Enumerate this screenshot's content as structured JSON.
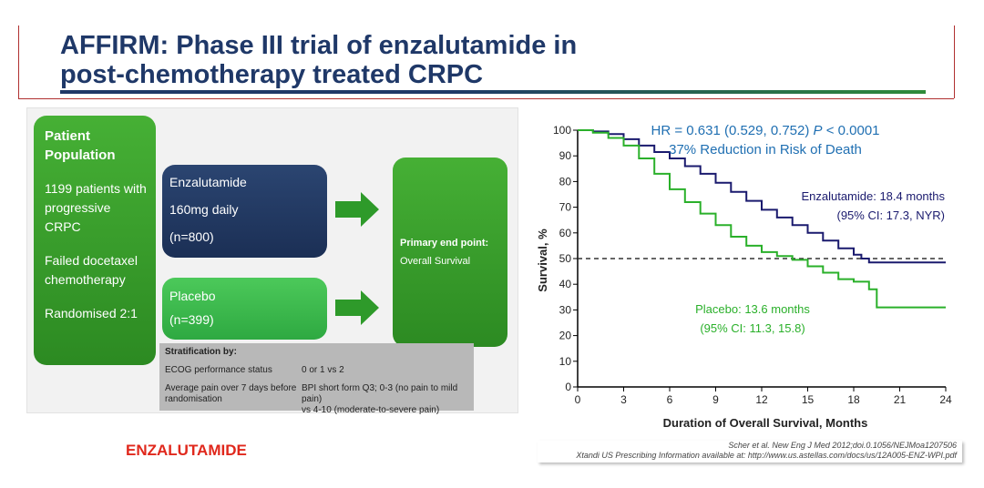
{
  "slide": {
    "title_line1": "AFFIRM: Phase III trial of enzalutamide in",
    "title_line2": "post-chemotherapy treated CRPC",
    "brand_label": "ENZALUTAMIDE",
    "references": [
      "Scher et al. New Eng J Med 2012;doi.0.1056/NEJMoa1207506",
      "Xtandi US Prescribing Information available at: http://www.us.astellas.com/docs/us/12A005-ENZ-WPI.pdf"
    ]
  },
  "design": {
    "population": {
      "heading_line1": "Patient",
      "heading_line2": "Population",
      "text1_line1": "1199 patients with",
      "text1_line2": "progressive",
      "text1_line3": "CRPC",
      "text2_line1": "Failed docetaxel",
      "text2_line2": "chemotherapy",
      "text3": "Randomised 2:1"
    },
    "enzalutamide_arm": {
      "name": "Enzalutamide",
      "dose": "160mg daily",
      "n": "(n=800)"
    },
    "placebo_arm": {
      "name": "Placebo",
      "n": "(n=399)"
    },
    "endpoint": {
      "heading": "Primary end point:",
      "value": "Overall Survival"
    },
    "stratification": {
      "heading": "Stratification by:",
      "row1_label": "ECOG performance status",
      "row1_value": "0 or 1 vs 2",
      "row2_label_line1": "Average pain over 7 days before",
      "row2_label_line2": "randomisation",
      "row2_value_line1": "BPI short form Q3; 0-3 (no pain to mild pain)",
      "row2_value_line2": "vs 4-10 (moderate-to-severe pain)"
    },
    "colors": {
      "green": "#2e9a2a",
      "navy": "#1b2f55",
      "light_green": "#3cba4e",
      "grey": "#b8b8b8"
    }
  },
  "chart_data": {
    "type": "line",
    "title": "",
    "xlabel": "Duration of Overall Survival, Months",
    "ylabel": "Survival, %",
    "xlim": [
      0,
      24
    ],
    "ylim": [
      0,
      100
    ],
    "x_ticks": [
      0,
      3,
      6,
      9,
      12,
      15,
      18,
      21,
      24
    ],
    "y_ticks": [
      0,
      10,
      20,
      30,
      40,
      50,
      60,
      70,
      80,
      90,
      100
    ],
    "grid": false,
    "reference_line": {
      "y": 50,
      "style": "dashed"
    },
    "annotations": {
      "hr_prefix": "HR = 0.631 (0.529, 0.752) ",
      "hr_p_label": "P",
      "hr_p_value": " < 0.0001",
      "reduction": "37% Reduction in Risk of Death",
      "enz_line1": "Enzalutamide:  18.4 months",
      "enz_line2": "(95% CI: 17.3, NYR)",
      "plc_line1": "Placebo: 13.6 months",
      "plc_line2": "(95% CI: 11.3, 15.8)"
    },
    "series": [
      {
        "name": "Enzalutamide",
        "color": "#1a1a6e",
        "points": [
          [
            0,
            100
          ],
          [
            1,
            99.5
          ],
          [
            2,
            98.5
          ],
          [
            3,
            96.5
          ],
          [
            4,
            94
          ],
          [
            5,
            91.5
          ],
          [
            6,
            89
          ],
          [
            7,
            86
          ],
          [
            8,
            83
          ],
          [
            9,
            79.5
          ],
          [
            10,
            76
          ],
          [
            11,
            72.5
          ],
          [
            12,
            69
          ],
          [
            13,
            66
          ],
          [
            14,
            63
          ],
          [
            15,
            60
          ],
          [
            16,
            57
          ],
          [
            17,
            54
          ],
          [
            18,
            51.5
          ],
          [
            18.5,
            50
          ],
          [
            19,
            48.5
          ],
          [
            20,
            48.5
          ],
          [
            21,
            48.5
          ],
          [
            22,
            48.5
          ],
          [
            23,
            48.5
          ],
          [
            24,
            48.5
          ]
        ]
      },
      {
        "name": "Placebo",
        "color": "#2ab02a",
        "points": [
          [
            0,
            100
          ],
          [
            1,
            99
          ],
          [
            2,
            97
          ],
          [
            3,
            94
          ],
          [
            4,
            89
          ],
          [
            5,
            83
          ],
          [
            6,
            77
          ],
          [
            7,
            72
          ],
          [
            8,
            67.5
          ],
          [
            9,
            63
          ],
          [
            10,
            58.5
          ],
          [
            11,
            55
          ],
          [
            12,
            52.5
          ],
          [
            13,
            51
          ],
          [
            14,
            49.5
          ],
          [
            15,
            47
          ],
          [
            16,
            44.5
          ],
          [
            17,
            42
          ],
          [
            18,
            41
          ],
          [
            19,
            38
          ],
          [
            19.5,
            31
          ],
          [
            20,
            31
          ],
          [
            21,
            31
          ],
          [
            22,
            31
          ],
          [
            23,
            31
          ],
          [
            24,
            31
          ]
        ]
      }
    ]
  }
}
